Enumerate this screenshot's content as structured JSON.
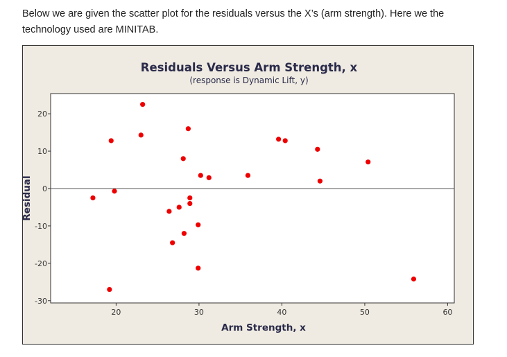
{
  "intro_text": "Below we are given the scatter plot for the residuals versus the X’s (arm strength). Here we the technology used are MINITAB.",
  "chart_data": {
    "type": "scatter",
    "title": "Residuals Versus Arm Strength, x",
    "subtitle": "(response is Dynamic Lift, y)",
    "xlabel": "Arm Strength, x",
    "ylabel": "Residual",
    "xticks": [
      20,
      30,
      40,
      50,
      60
    ],
    "yticks": [
      20,
      10,
      0,
      -10,
      -20,
      -30
    ],
    "xlim": [
      12.1,
      60.8
    ],
    "ylim": [
      -30.6,
      25.4
    ],
    "reference_line_y": 0,
    "point_color": "#ee0000",
    "points": [
      [
        17.2,
        -2.5
      ],
      [
        19.4,
        12.8
      ],
      [
        19.8,
        -0.7
      ],
      [
        19.2,
        -27
      ],
      [
        23,
        14.3
      ],
      [
        23.2,
        22.5
      ],
      [
        26.4,
        -6.1
      ],
      [
        26.8,
        -14.5
      ],
      [
        27.6,
        -5
      ],
      [
        28.1,
        8
      ],
      [
        28.2,
        -12
      ],
      [
        28.7,
        16
      ],
      [
        28.9,
        -2.5
      ],
      [
        28.9,
        -4
      ],
      [
        29.9,
        -9.7
      ],
      [
        29.9,
        -21.3
      ],
      [
        30.2,
        3.5
      ],
      [
        31.2,
        2.9
      ],
      [
        35.9,
        3.5
      ],
      [
        39.6,
        13.2
      ],
      [
        40.4,
        12.8
      ],
      [
        44.3,
        10.5
      ],
      [
        44.6,
        2
      ],
      [
        50.4,
        7.1
      ],
      [
        55.9,
        -24.2
      ]
    ]
  }
}
